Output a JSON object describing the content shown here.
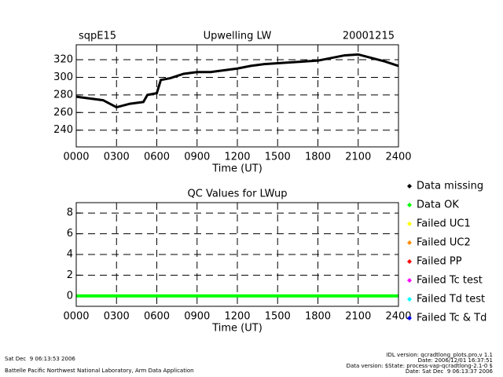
{
  "chart_data": [
    {
      "type": "line",
      "title": "Upwelling LW",
      "site": "sqpE15",
      "date": "20001215",
      "xlabel": "Time (UT)",
      "x": [
        0,
        100,
        200,
        300,
        400,
        500,
        530,
        600,
        630,
        700,
        800,
        900,
        1000,
        1100,
        1200,
        1300,
        1400,
        1500,
        1600,
        1700,
        1800,
        1900,
        2000,
        2100,
        2200,
        2300,
        2400
      ],
      "series": [
        {
          "color": "#000000",
          "values": [
            278,
            276,
            274,
            266,
            270,
            272,
            280,
            282,
            297,
            299,
            304,
            306,
            306,
            308,
            310,
            313,
            315,
            316,
            317,
            318,
            319,
            322,
            325,
            326,
            322,
            318,
            313
          ]
        }
      ],
      "xlim": [
        0,
        2400
      ],
      "xticks": [
        {
          "value": 0,
          "label": "0000"
        },
        {
          "value": 300,
          "label": "0300"
        },
        {
          "value": 600,
          "label": "0600"
        },
        {
          "value": 900,
          "label": "0900"
        },
        1200,
        1500,
        1800,
        2100,
        2400
      ],
      "ylim": [
        221,
        337
      ],
      "yticks": [
        240,
        260,
        280,
        300,
        320
      ],
      "grid": true
    },
    {
      "type": "line",
      "title": "QC Values for LWup",
      "xlabel": "Time (UT)",
      "x": [
        0,
        2400
      ],
      "series": [
        {
          "name": "Data missing",
          "color": "#000000",
          "values": [
            null,
            null
          ]
        },
        {
          "name": "Data OK",
          "color": "#00ff00",
          "values": [
            0,
            0
          ]
        },
        {
          "name": "Failed UC1",
          "color": "#ffff00",
          "values": [
            null,
            null
          ]
        },
        {
          "name": "Failed UC2",
          "color": "#ff8c00",
          "values": [
            null,
            null
          ]
        },
        {
          "name": "Failed PP",
          "color": "#ff0000",
          "values": [
            null,
            null
          ]
        },
        {
          "name": "Failed Tc test",
          "color": "#ff00ff",
          "values": [
            null,
            null
          ]
        },
        {
          "name": "Failed Td test",
          "color": "#00ffff",
          "values": [
            null,
            null
          ]
        },
        {
          "name": "Failed Tc & Td",
          "color": "#0000ff",
          "values": [
            null,
            null
          ]
        }
      ],
      "xlim": [
        0,
        2400
      ],
      "xticks": [
        {
          "value": 0,
          "label": "0000"
        },
        {
          "value": 300,
          "label": "0300"
        },
        {
          "value": 600,
          "label": "0600"
        },
        {
          "value": 900,
          "label": "0900"
        },
        1200,
        1500,
        1800,
        2100,
        2400
      ],
      "ylim": [
        -1,
        9
      ],
      "yticks": [
        0,
        2,
        4,
        6,
        8
      ],
      "grid": true,
      "legend": "right"
    }
  ],
  "footer": {
    "left": [
      "Sat Dec  9 06:13:53 2006",
      "Battelle Pacific Northwest National Laboratory, Arm Data Application"
    ],
    "right": [
      "IDL version: qcradtlong_plots.pro,v 1.1",
      "Date: 2006/12/01 16:37:51",
      "Data version: $State: process-vap-qcradtlong-2.1-0 $",
      "Date: Sat Dec  9 06:13:37 2006"
    ]
  }
}
